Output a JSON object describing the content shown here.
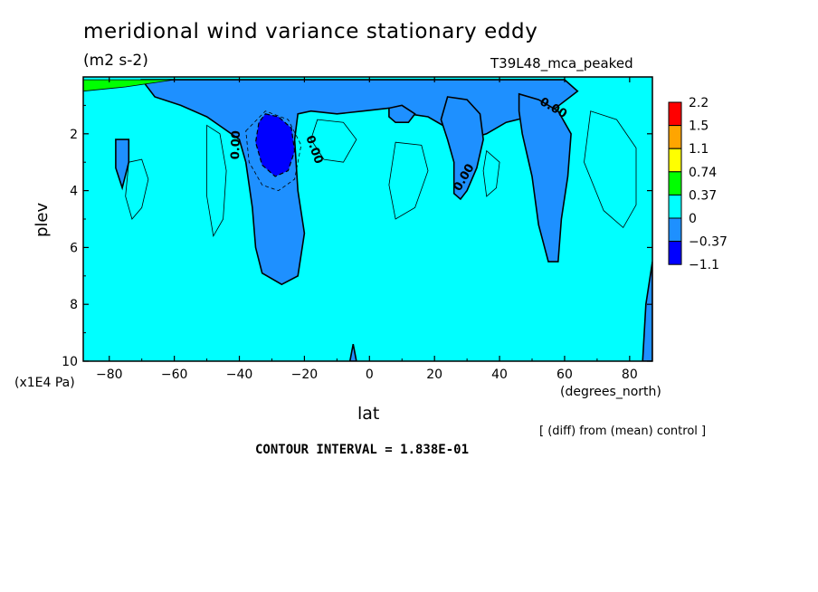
{
  "header": {
    "title": "meridional wind variance  stationary eddy",
    "units": "(m2 s-2)",
    "run": "T39L48_mca_peaked"
  },
  "footer": {
    "diff_note": "[ (diff) from (mean) control ]",
    "contour_interval": "CONTOUR INTERVAL = 1.838E-01"
  },
  "chart_data": {
    "type": "heatmap",
    "title": "meridional wind variance  stationary eddy",
    "subtitle": "(m2 s-2)",
    "xlabel": "lat",
    "x_units": "(degrees_north)",
    "ylabel": "plev",
    "y_units": "(x1E4 Pa)",
    "xlim": [
      -88,
      87
    ],
    "ylim": [
      10,
      0
    ],
    "x_ticks": [
      -80,
      -60,
      -40,
      -20,
      0,
      20,
      40,
      60,
      80
    ],
    "y_ticks": [
      2,
      4,
      6,
      8,
      10
    ],
    "contour_label": "0.00",
    "colorbar": {
      "labels": [
        "2.2",
        "1.5",
        "1.1",
        "0.74",
        "0.37",
        "0",
        "-0.37",
        "-1.1"
      ],
      "colors": [
        "#ff0000",
        "#ffa500",
        "#ffff00",
        "#00ff00",
        "#00ffff",
        "#1e90ff",
        "#0000ff"
      ]
    },
    "fill_colors": {
      "background": "#00ffff",
      "negative": "#1e90ff",
      "strong_negative": "#0000ff"
    },
    "negative_regions": [
      {
        "name": "upper-trop",
        "points": [
          [
            -70,
            0.1
          ],
          [
            60,
            0.1
          ],
          [
            64,
            0.5
          ],
          [
            56,
            1.2
          ],
          [
            42,
            1.6
          ],
          [
            36,
            2.0
          ],
          [
            30,
            2.2
          ],
          [
            24,
            1.8
          ],
          [
            18,
            1.4
          ],
          [
            12,
            1.3
          ],
          [
            6,
            1.1
          ],
          [
            -2,
            1.2
          ],
          [
            -10,
            1.3
          ],
          [
            -18,
            1.2
          ],
          [
            -22,
            1.3
          ],
          [
            -23,
            2.2
          ],
          [
            -22,
            4.0
          ],
          [
            -20,
            5.5
          ],
          [
            -22,
            7.0
          ],
          [
            -27,
            7.3
          ],
          [
            -33,
            6.9
          ],
          [
            -35,
            6.0
          ],
          [
            -36,
            4.6
          ],
          [
            -38,
            3.0
          ],
          [
            -40,
            2.2
          ],
          [
            -45,
            1.8
          ],
          [
            -50,
            1.4
          ],
          [
            -58,
            1.0
          ],
          [
            -66,
            0.7
          ]
        ]
      },
      {
        "name": "nh-trop-tongue",
        "points": [
          [
            24,
            0.7
          ],
          [
            30,
            0.8
          ],
          [
            34,
            1.3
          ],
          [
            35,
            2.2
          ],
          [
            33,
            3.2
          ],
          [
            30,
            4.0
          ],
          [
            28,
            4.3
          ],
          [
            26,
            4.1
          ],
          [
            26,
            3.0
          ],
          [
            24,
            2.2
          ],
          [
            22,
            1.5
          ]
        ]
      },
      {
        "name": "nh-column",
        "points": [
          [
            46,
            0.6
          ],
          [
            52,
            0.8
          ],
          [
            58,
            1.2
          ],
          [
            62,
            2.0
          ],
          [
            61,
            3.5
          ],
          [
            59,
            5.0
          ],
          [
            58,
            6.5
          ],
          [
            55,
            6.5
          ],
          [
            52,
            5.2
          ],
          [
            50,
            3.5
          ],
          [
            47,
            2.0
          ],
          [
            46,
            1.2
          ]
        ]
      },
      {
        "name": "south-sliver",
        "points": [
          [
            -78,
            2.2
          ],
          [
            -74,
            2.2
          ],
          [
            -74,
            3.0
          ],
          [
            -76,
            3.9
          ],
          [
            -78,
            3.2
          ]
        ]
      },
      {
        "name": "equator-blob",
        "points": [
          [
            6,
            1.1
          ],
          [
            10,
            1.0
          ],
          [
            14,
            1.3
          ],
          [
            12,
            1.6
          ],
          [
            8,
            1.6
          ],
          [
            6,
            1.4
          ]
        ]
      },
      {
        "name": "right-edge",
        "points": [
          [
            84,
            10
          ],
          [
            85,
            8
          ],
          [
            87,
            6.5
          ],
          [
            87,
            10
          ]
        ]
      },
      {
        "name": "bottom-spike",
        "points": [
          [
            -6,
            10
          ],
          [
            -5,
            9.4
          ],
          [
            -4,
            10
          ]
        ]
      }
    ],
    "strong_negative_regions": [
      {
        "name": "core",
        "points": [
          [
            -32,
            1.3
          ],
          [
            -28,
            1.4
          ],
          [
            -24,
            1.8
          ],
          [
            -23,
            2.6
          ],
          [
            -25,
            3.3
          ],
          [
            -29,
            3.5
          ],
          [
            -33,
            3.1
          ],
          [
            -35,
            2.3
          ],
          [
            -34,
            1.6
          ]
        ]
      }
    ]
  }
}
